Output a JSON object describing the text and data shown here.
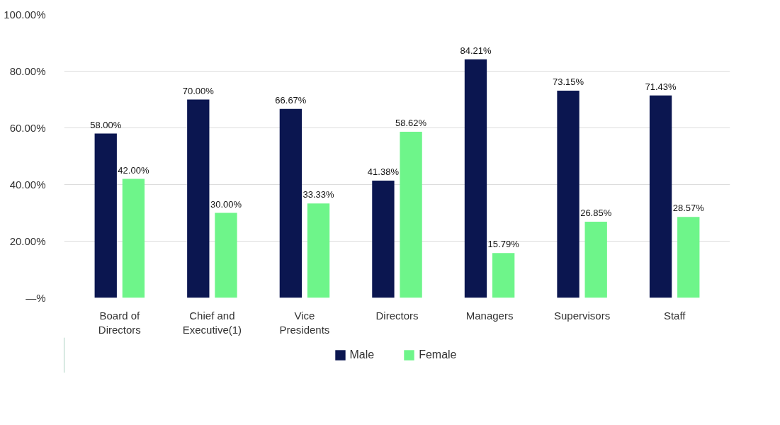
{
  "chart_data": {
    "type": "bar",
    "categories": [
      "Board of Directors",
      "Chief and Executive(1)",
      "Vice Presidents",
      "Directors",
      "Managers",
      "Supervisors",
      "Staff"
    ],
    "series": [
      {
        "name": "Male",
        "color": "#0b1650",
        "values": [
          58.0,
          70.0,
          66.67,
          41.38,
          84.21,
          73.15,
          71.43
        ],
        "value_labels": [
          "58.00%",
          "70.00%",
          "66.67%",
          "41.38%",
          "84.21%",
          "73.15%",
          "71.43%"
        ]
      },
      {
        "name": "Female",
        "color": "#6ef58a",
        "values": [
          42.0,
          30.0,
          33.33,
          58.62,
          15.79,
          26.85,
          28.57
        ],
        "value_labels": [
          "42.00%",
          "30.00%",
          "33.33%",
          "58.62%",
          "15.79%",
          "26.85%",
          "28.57%"
        ]
      }
    ],
    "ylim": [
      0,
      100
    ],
    "yticks": [
      {
        "value": 0,
        "label": "—%"
      },
      {
        "value": 20,
        "label": "20.00%"
      },
      {
        "value": 40,
        "label": "40.00%"
      },
      {
        "value": 60,
        "label": "60.00%"
      },
      {
        "value": 80,
        "label": "80.00%"
      },
      {
        "value": 100,
        "label": "100.00%"
      }
    ],
    "grid": "y",
    "legend": "bottom"
  }
}
